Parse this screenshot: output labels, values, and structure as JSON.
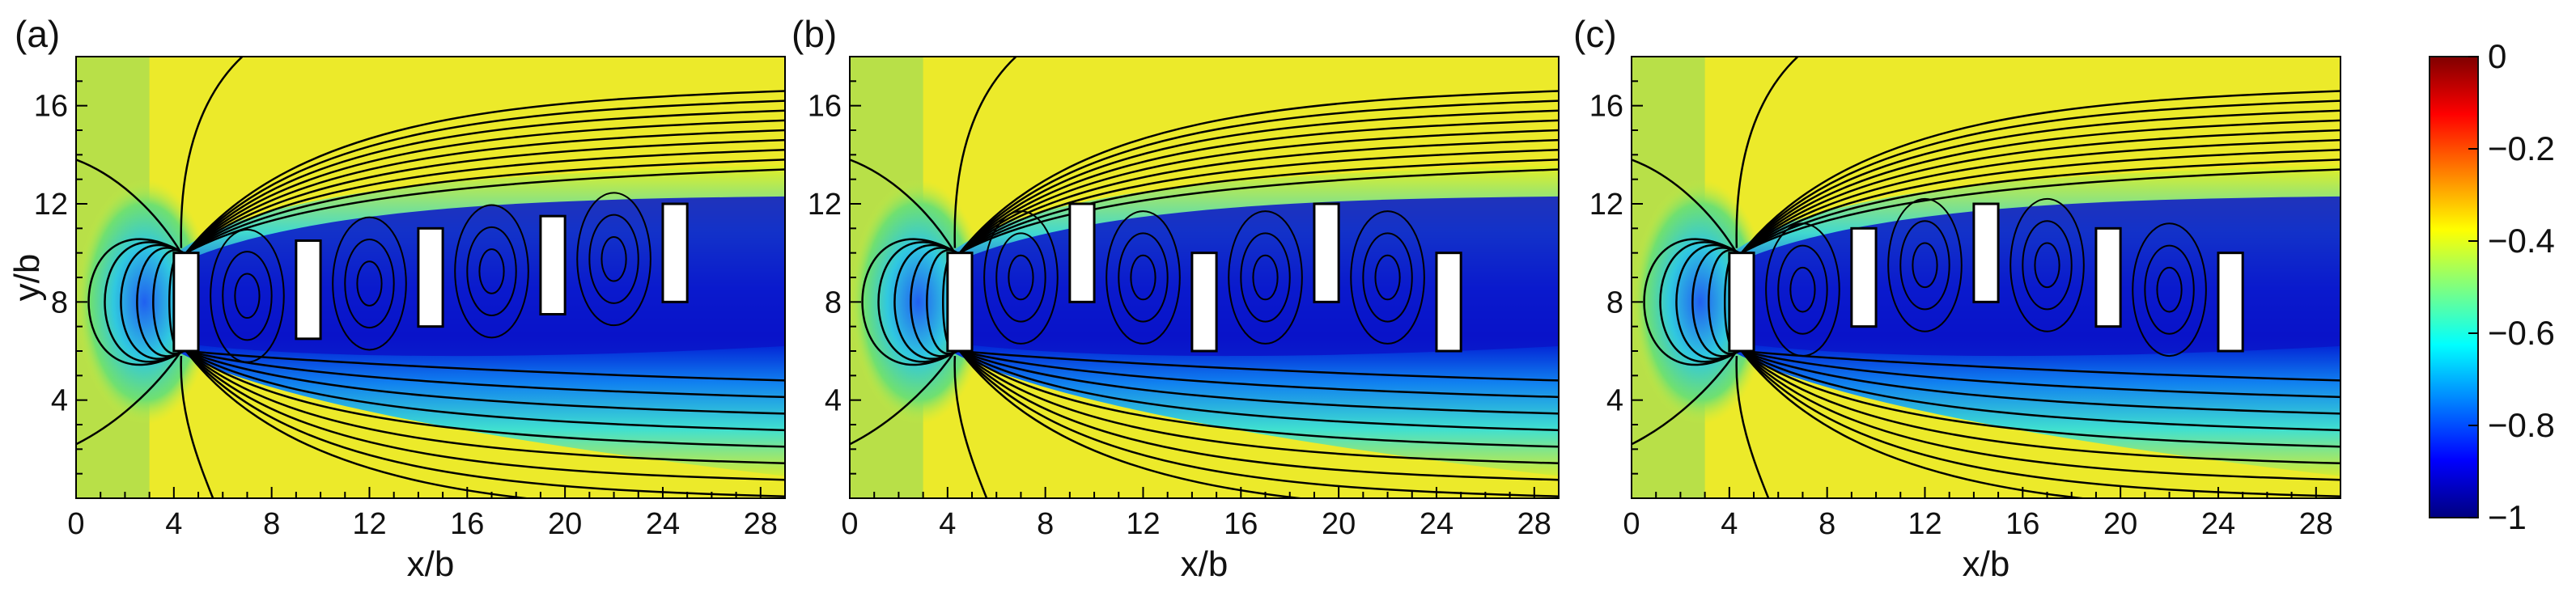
{
  "chart_data": [
    {
      "type": "heatmap",
      "panel_label": "(a)",
      "xlabel": "x/b",
      "ylabel": "y/b",
      "xlim": [
        0,
        29
      ],
      "ylim": [
        0,
        18
      ],
      "xticks": [
        "0",
        "4",
        "8",
        "12",
        "16",
        "20",
        "24",
        "28"
      ],
      "yticks": [
        "4",
        "8",
        "12",
        "16"
      ],
      "xtick_values": [
        0,
        4,
        8,
        12,
        16,
        20,
        24,
        28
      ],
      "ytick_values": [
        4,
        8,
        12,
        16
      ],
      "bodies": [
        {
          "x": 4.5,
          "y": 8.0,
          "w": 1.0,
          "h": 4.0
        },
        {
          "x": 9.5,
          "y": 8.5,
          "w": 1.0,
          "h": 4.0
        },
        {
          "x": 14.5,
          "y": 9.0,
          "w": 1.0,
          "h": 4.0
        },
        {
          "x": 19.5,
          "y": 9.5,
          "w": 1.0,
          "h": 4.0
        },
        {
          "x": 24.5,
          "y": 10.0,
          "w": 1.0,
          "h": 4.0
        }
      ]
    },
    {
      "type": "heatmap",
      "panel_label": "(b)",
      "xlabel": "x/b",
      "ylabel": "",
      "xlim": [
        0,
        29
      ],
      "ylim": [
        0,
        18
      ],
      "xticks": [
        "0",
        "4",
        "8",
        "12",
        "16",
        "20",
        "24",
        "28"
      ],
      "yticks": [
        "4",
        "8",
        "12",
        "16"
      ],
      "xtick_values": [
        0,
        4,
        8,
        12,
        16,
        20,
        24,
        28
      ],
      "ytick_values": [
        4,
        8,
        12,
        16
      ],
      "bodies": [
        {
          "x": 4.5,
          "y": 8.0,
          "w": 1.0,
          "h": 4.0
        },
        {
          "x": 9.5,
          "y": 10.0,
          "w": 1.0,
          "h": 4.0
        },
        {
          "x": 14.5,
          "y": 8.0,
          "w": 1.0,
          "h": 4.0
        },
        {
          "x": 19.5,
          "y": 10.0,
          "w": 1.0,
          "h": 4.0
        },
        {
          "x": 24.5,
          "y": 8.0,
          "w": 1.0,
          "h": 4.0
        }
      ]
    },
    {
      "type": "heatmap",
      "panel_label": "(c)",
      "xlabel": "x/b",
      "ylabel": "",
      "xlim": [
        0,
        29
      ],
      "ylim": [
        0,
        18
      ],
      "xticks": [
        "0",
        "4",
        "8",
        "12",
        "16",
        "20",
        "24",
        "28"
      ],
      "yticks": [
        "4",
        "8",
        "12",
        "16"
      ],
      "xtick_values": [
        0,
        4,
        8,
        12,
        16,
        20,
        24,
        28
      ],
      "ytick_values": [
        4,
        8,
        12,
        16
      ],
      "bodies": [
        {
          "x": 4.5,
          "y": 8.0,
          "w": 1.0,
          "h": 4.0
        },
        {
          "x": 9.5,
          "y": 9.0,
          "w": 1.0,
          "h": 4.0
        },
        {
          "x": 14.5,
          "y": 10.0,
          "w": 1.0,
          "h": 4.0
        },
        {
          "x": 19.5,
          "y": 9.0,
          "w": 1.0,
          "h": 4.0
        },
        {
          "x": 24.5,
          "y": 8.0,
          "w": 1.0,
          "h": 4.0
        }
      ]
    }
  ],
  "colorbar": {
    "range": [
      -1,
      0
    ],
    "ticks": [
      "0",
      "−0.2",
      "−0.4",
      "−0.6",
      "−0.8",
      "−1"
    ],
    "tick_values": [
      0,
      -0.2,
      -0.4,
      -0.6,
      -0.8,
      -1
    ],
    "colors": [
      "#00007f",
      "#0000ff",
      "#007fff",
      "#00ffff",
      "#7fff7f",
      "#ffff00",
      "#ff7f00",
      "#ff0000",
      "#7f0000"
    ]
  }
}
